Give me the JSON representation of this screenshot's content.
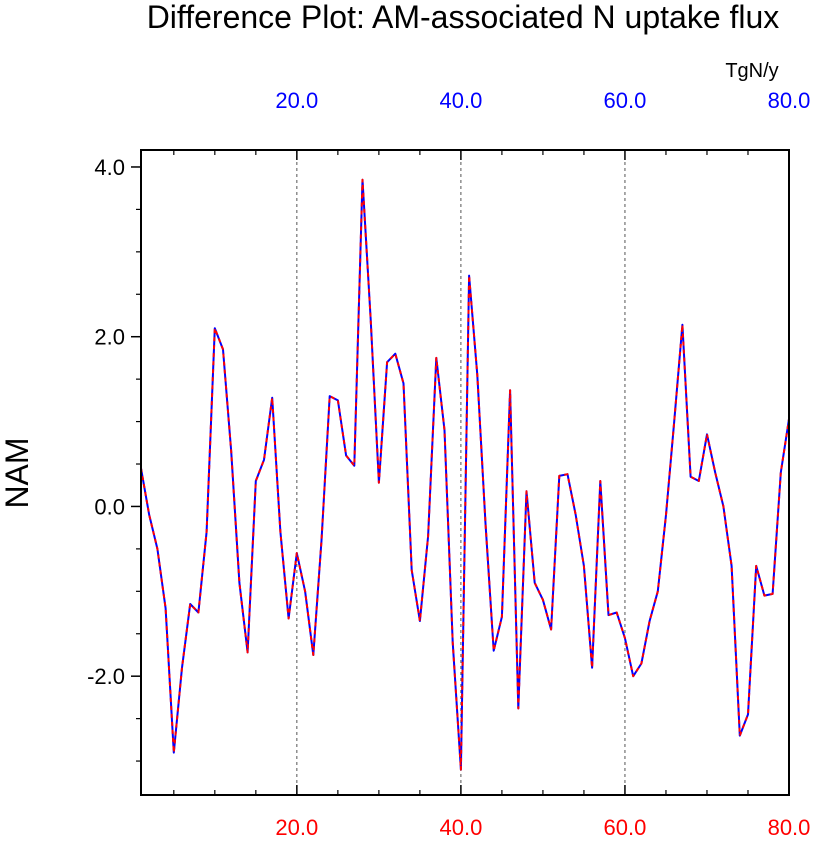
{
  "chart_data": {
    "type": "line",
    "title": "Difference Plot: AM-associated N uptake flux",
    "ylabel": "NAM",
    "top_axis_unit": "TgN/y",
    "x_range": [
      1,
      80
    ],
    "ylim": [
      -3.4,
      4.2
    ],
    "x_ticks": [
      20,
      40,
      60,
      80
    ],
    "x_tick_labels": [
      "20.0",
      "40.0",
      "60.0",
      "80.0"
    ],
    "y_ticks": [
      -2,
      0,
      2,
      4
    ],
    "y_tick_labels": [
      "-2.0",
      "0.0",
      "2.0",
      "4.0"
    ],
    "grid": "vertical dashed lines at labeled x ticks",
    "colors": {
      "series_solid": "#0000ff",
      "series_dashed": "#ff0000",
      "bottom_axis_labels": "#ff0000",
      "top_axis_labels": "#0000ff"
    },
    "series": [
      {
        "x": [
          1,
          2,
          3,
          4,
          5,
          6,
          7,
          8,
          9,
          10,
          11,
          12,
          13,
          14,
          15,
          16,
          17,
          18,
          19,
          20,
          21,
          22,
          23,
          24,
          25,
          26,
          27,
          28,
          29,
          30,
          31,
          32,
          33,
          34,
          35,
          36,
          37,
          38,
          39,
          40,
          41,
          42,
          43,
          44,
          45,
          46,
          47,
          48,
          49,
          50,
          51,
          52,
          53,
          54,
          55,
          56,
          57,
          58,
          59,
          60,
          61,
          62,
          63,
          64,
          65,
          66,
          67,
          68,
          69,
          70,
          71,
          72,
          73,
          74,
          75,
          76,
          77,
          78,
          79,
          80
        ],
        "values": [
          0.45,
          -0.1,
          -0.5,
          -1.2,
          -2.9,
          -1.9,
          -1.15,
          -1.25,
          -0.3,
          2.1,
          1.85,
          0.65,
          -0.9,
          -1.72,
          0.3,
          0.55,
          1.28,
          -0.3,
          -1.32,
          -0.55,
          -1.0,
          -1.75,
          -0.4,
          1.3,
          1.25,
          0.6,
          0.48,
          3.85,
          2.2,
          0.28,
          1.7,
          1.8,
          1.45,
          -0.75,
          -1.35,
          -0.35,
          1.75,
          0.9,
          -1.6,
          -3.1,
          2.72,
          1.55,
          -0.2,
          -1.7,
          -1.3,
          1.37,
          -2.38,
          0.18,
          -0.9,
          -1.1,
          -1.45,
          0.36,
          0.38,
          -0.1,
          -0.7,
          -1.9,
          0.3,
          -1.28,
          -1.25,
          -1.55,
          -2.0,
          -1.85,
          -1.35,
          -1.0,
          -0.1,
          1.0,
          2.14,
          0.35,
          0.3,
          0.85,
          0.4,
          0.0,
          -0.7,
          -2.7,
          -2.45,
          -0.7,
          -1.05,
          -1.03,
          0.4,
          1.03
        ]
      }
    ]
  }
}
